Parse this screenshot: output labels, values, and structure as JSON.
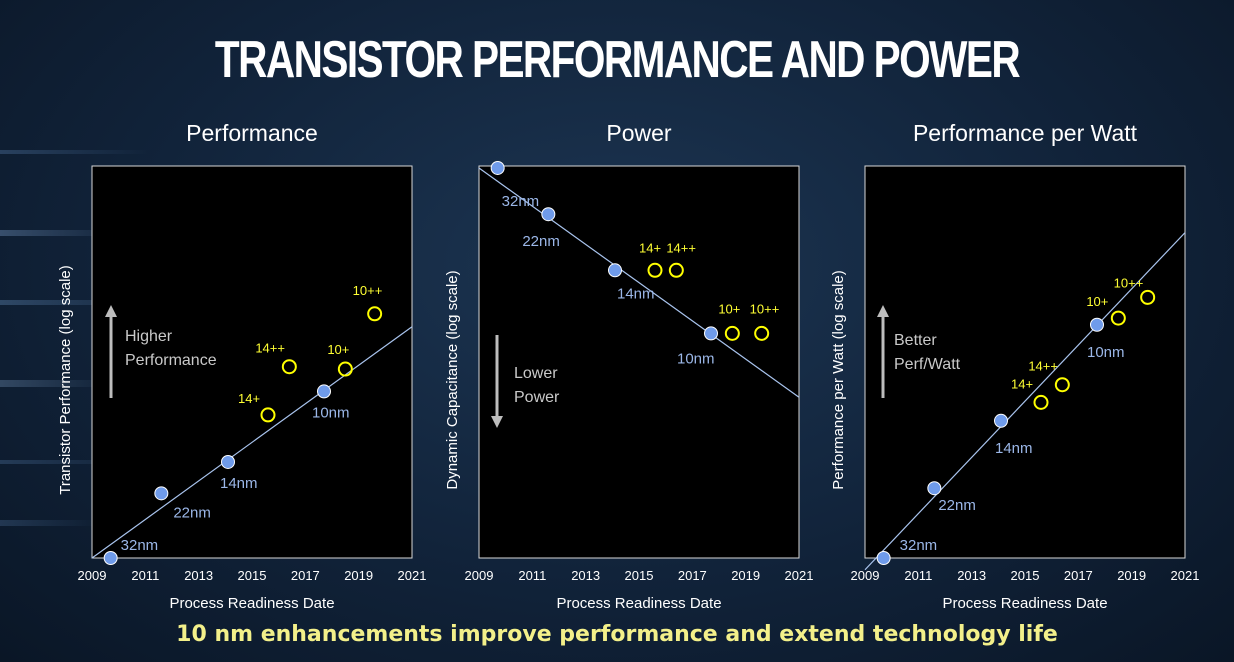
{
  "title": "TRANSISTOR PERFORMANCE AND POWER",
  "caption": "10 nm enhancements improve performance and extend technology life",
  "colors": {
    "node_fill": "#6f9bea",
    "node_stroke": "#ffffff",
    "enhance_stroke": "#ffff00",
    "trend": "#a9c4ee",
    "plot_bg": "#000000"
  },
  "chart_data": [
    {
      "type": "scatter",
      "title": "Performance",
      "xlabel": "Process Readiness Date",
      "ylabel": "Transistor Performance (log scale)",
      "xlim": [
        2009,
        2021
      ],
      "xticks": [
        "2009",
        "2011",
        "2013",
        "2015",
        "2017",
        "2019",
        "2021"
      ],
      "yscale": "log",
      "ylim": [
        0,
        1
      ],
      "annotation": [
        "Higher",
        "Performance"
      ],
      "arrow": "up",
      "trend": {
        "x": [
          2009,
          2021
        ],
        "y": [
          0.0,
          0.59
        ]
      },
      "nodes": [
        {
          "label": "32nm",
          "x": 2009.7,
          "y": 0.0
        },
        {
          "label": "22nm",
          "x": 2011.6,
          "y": 0.165
        },
        {
          "label": "14nm",
          "x": 2014.1,
          "y": 0.245
        },
        {
          "label": "10nm",
          "x": 2017.7,
          "y": 0.425
        }
      ],
      "enhancements": [
        {
          "label": "14+",
          "x": 2015.6,
          "y": 0.365
        },
        {
          "label": "14++",
          "x": 2016.4,
          "y": 0.488
        },
        {
          "label": "10+",
          "x": 2018.5,
          "y": 0.482
        },
        {
          "label": "10++",
          "x": 2019.6,
          "y": 0.623
        }
      ]
    },
    {
      "type": "scatter",
      "title": "Power",
      "xlabel": "Process Readiness Date",
      "ylabel": "Dynamic Capacitance (log scale)",
      "xlim": [
        2009,
        2021
      ],
      "xticks": [
        "2009",
        "2011",
        "2013",
        "2015",
        "2017",
        "2019",
        "2021"
      ],
      "yscale": "log",
      "ylim": [
        0,
        1
      ],
      "annotation": [
        "Lower",
        "Power"
      ],
      "arrow": "down",
      "trend": {
        "x": [
          2009,
          2021
        ],
        "y": [
          0.995,
          0.41
        ]
      },
      "nodes": [
        {
          "label": "32nm",
          "x": 2009.7,
          "y": 0.995
        },
        {
          "label": "22nm",
          "x": 2011.6,
          "y": 0.877
        },
        {
          "label": "14nm",
          "x": 2014.1,
          "y": 0.734
        },
        {
          "label": "10nm",
          "x": 2017.7,
          "y": 0.573
        }
      ],
      "enhancements": [
        {
          "label": "14+",
          "x": 2015.6,
          "y": 0.734
        },
        {
          "label": "14++",
          "x": 2016.4,
          "y": 0.734
        },
        {
          "label": "10+",
          "x": 2018.5,
          "y": 0.573
        },
        {
          "label": "10++",
          "x": 2019.6,
          "y": 0.573
        }
      ]
    },
    {
      "type": "scatter",
      "title": "Performance per Watt",
      "xlabel": "Process Readiness Date",
      "ylabel": "Performance per Watt (log scale)",
      "xlim": [
        2009,
        2021
      ],
      "xticks": [
        "2009",
        "2011",
        "2013",
        "2015",
        "2017",
        "2019",
        "2021"
      ],
      "yscale": "log",
      "ylim": [
        0,
        1
      ],
      "annotation": [
        "Better",
        "Perf/Watt"
      ],
      "arrow": "up",
      "trend": {
        "x": [
          2009,
          2021
        ],
        "y": [
          -0.03,
          0.83
        ]
      },
      "nodes": [
        {
          "label": "32nm",
          "x": 2009.7,
          "y": 0.0
        },
        {
          "label": "22nm",
          "x": 2011.6,
          "y": 0.178
        },
        {
          "label": "14nm",
          "x": 2014.1,
          "y": 0.35
        },
        {
          "label": "10nm",
          "x": 2017.7,
          "y": 0.595
        }
      ],
      "enhancements": [
        {
          "label": "14+",
          "x": 2015.6,
          "y": 0.397
        },
        {
          "label": "14++",
          "x": 2016.4,
          "y": 0.442
        },
        {
          "label": "10+",
          "x": 2018.5,
          "y": 0.612
        },
        {
          "label": "10++",
          "x": 2019.6,
          "y": 0.665
        }
      ]
    }
  ]
}
